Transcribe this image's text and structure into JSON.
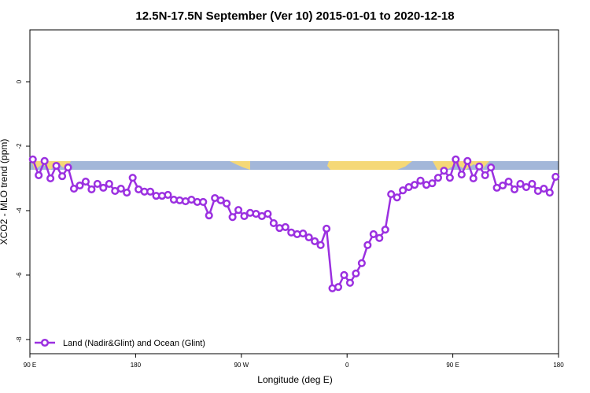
{
  "chart_data": {
    "type": "line",
    "title": "12.5N-17.5N September (Ver 10)   2015-01-01 to 2020-12-18",
    "x_label": "Longitude (deg E)",
    "y_label": "XCO2 - MLO trend (ppm)",
    "x": [
      92.5,
      97.5,
      102.5,
      107.5,
      112.5,
      117.5,
      122.5,
      127.5,
      132.5,
      137.5,
      142.5,
      147.5,
      152.5,
      157.5,
      162.5,
      167.5,
      172.5,
      177.5,
      182.5,
      187.5,
      192.5,
      197.5,
      202.5,
      207.5,
      212.5,
      217.5,
      222.5,
      227.5,
      232.5,
      237.5,
      242.5,
      247.5,
      252.5,
      257.5,
      262.5,
      267.5,
      272.5,
      277.5,
      282.5,
      287.5,
      292.5,
      297.5,
      302.5,
      307.5,
      312.5,
      317.5,
      322.5,
      327.5,
      332.5,
      337.5,
      342.5,
      347.5,
      352.5,
      357.5,
      362.5,
      367.5,
      372.5,
      377.5,
      382.5,
      387.5,
      392.5,
      397.5,
      402.5,
      407.5,
      412.5,
      417.5,
      422.5,
      427.5,
      432.5,
      437.5,
      442.5,
      447.5,
      452.5,
      457.5,
      462.5,
      467.5,
      472.5,
      477.5,
      482.5,
      487.5,
      492.5,
      497.5,
      502.5,
      507.5,
      512.5,
      517.5,
      522.5,
      527.5,
      532.5,
      537.5
    ],
    "series": [
      {
        "name": "Land (Nadir&Glint) and Ocean (Glint)",
        "color": "#9b30e0",
        "values": [
          -2.41,
          -2.9,
          -2.46,
          -3.0,
          -2.61,
          -2.93,
          -2.66,
          -3.32,
          -3.22,
          -3.1,
          -3.34,
          -3.17,
          -3.29,
          -3.17,
          -3.39,
          -3.32,
          -3.44,
          -2.98,
          -3.34,
          -3.41,
          -3.41,
          -3.54,
          -3.54,
          -3.51,
          -3.66,
          -3.68,
          -3.71,
          -3.66,
          -3.73,
          -3.73,
          -4.15,
          -3.61,
          -3.68,
          -3.78,
          -4.2,
          -3.98,
          -4.17,
          -4.07,
          -4.1,
          -4.17,
          -4.1,
          -4.39,
          -4.54,
          -4.51,
          -4.68,
          -4.73,
          -4.71,
          -4.83,
          -4.95,
          -5.07,
          -4.56,
          -6.41,
          -6.37,
          -6.0,
          -6.24,
          -5.95,
          -5.63,
          -5.07,
          -4.73,
          -4.85,
          -4.59,
          -3.49,
          -3.59,
          -3.37,
          -3.27,
          -3.2,
          -3.07,
          -3.2,
          -3.15,
          -2.98,
          -2.76,
          -2.98,
          -2.41,
          -2.88,
          -2.46,
          -3.0,
          -2.63,
          -2.9,
          -2.66,
          -3.29,
          -3.22,
          -3.1,
          -3.34,
          -3.17,
          -3.27,
          -3.17,
          -3.39,
          -3.32,
          -3.44,
          -2.95
        ]
      }
    ],
    "xlim": [
      90,
      540
    ],
    "xticks": [
      {
        "value": 90,
        "label": "90 E"
      },
      180,
      {
        "value": 270,
        "label": "90 W"
      },
      {
        "value": 360,
        "label": "0"
      },
      {
        "value": 450,
        "label": "90 E"
      },
      {
        "value": 540,
        "label": "180"
      }
    ],
    "ylim": [
      -8.44,
      1.61
    ],
    "yticks": [
      0,
      -2,
      -4,
      -6,
      -8
    ],
    "legend": "bottom-left"
  }
}
